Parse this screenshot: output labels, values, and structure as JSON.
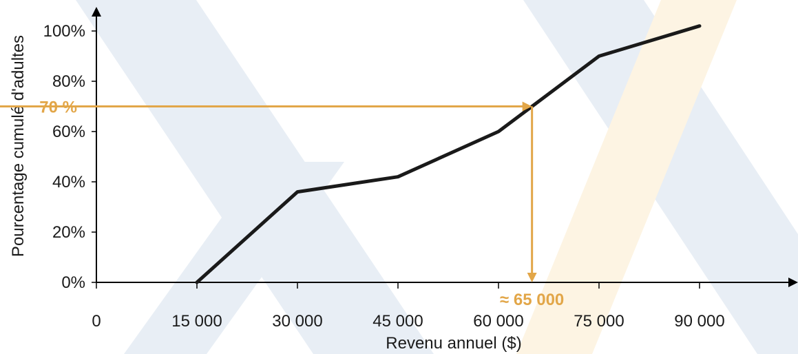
{
  "colors": {
    "line": "#1a1a1a",
    "axis": "#000000",
    "annotation": "#e2a648",
    "watermark_blue": "#e8eef5",
    "watermark_orange": "#fdf4e3"
  },
  "chart_data": {
    "type": "line",
    "xlabel": "Revenu annuel ($)",
    "ylabel": "Pourcentage cumulé d'adultes",
    "xlim": [
      0,
      100000
    ],
    "ylim": [
      0,
      100
    ],
    "x_ticks": [
      0,
      15000,
      30000,
      45000,
      60000,
      75000,
      90000
    ],
    "x_tick_labels": [
      "0",
      "15 000",
      "30 000",
      "45 000",
      "60 000",
      "75 000",
      "90 000"
    ],
    "y_ticks": [
      0,
      20,
      40,
      60,
      80,
      100
    ],
    "y_tick_labels": [
      "0%",
      "20%",
      "40%",
      "60%",
      "80%",
      "100%"
    ],
    "grid": false,
    "series": [
      {
        "x": [
          15000,
          30000,
          45000,
          60000,
          75000,
          90000
        ],
        "y": [
          0,
          36,
          42,
          60,
          90,
          102
        ]
      }
    ],
    "annotation": {
      "y_value": 70,
      "y_label": "70 %",
      "x_value": 65000,
      "x_label": "≈ 65 000"
    }
  }
}
